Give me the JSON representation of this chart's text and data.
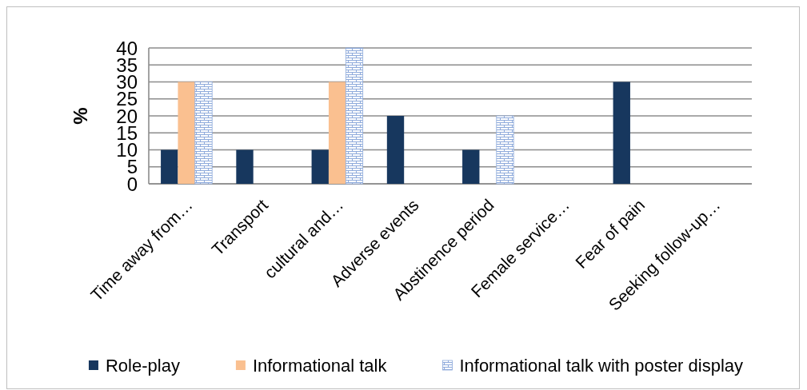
{
  "chart_data": {
    "type": "bar",
    "ylabel": "%",
    "categories": [
      "Time away from…",
      "Transport",
      "cultural and…",
      "Adverse events",
      "Abstinence period",
      "Female service…",
      "Fear of pain",
      "Seeking follow-up…"
    ],
    "series": [
      {
        "name": "Role-play",
        "color": "#17375e",
        "values": [
          10,
          10,
          10,
          20,
          10,
          0,
          30,
          0
        ]
      },
      {
        "name": "Informational talk",
        "color": "#fac090",
        "values": [
          30,
          0,
          30,
          0,
          0,
          0,
          0,
          0
        ]
      },
      {
        "name": "Informational talk with poster display",
        "color": "#8eaadb",
        "values": [
          30,
          0,
          40,
          0,
          20,
          0,
          0,
          0
        ]
      }
    ],
    "ylim": [
      0,
      40
    ],
    "yticks": [
      0,
      5,
      10,
      15,
      20,
      25,
      30,
      35,
      40
    ],
    "grid": "y",
    "legend": "bottom"
  }
}
